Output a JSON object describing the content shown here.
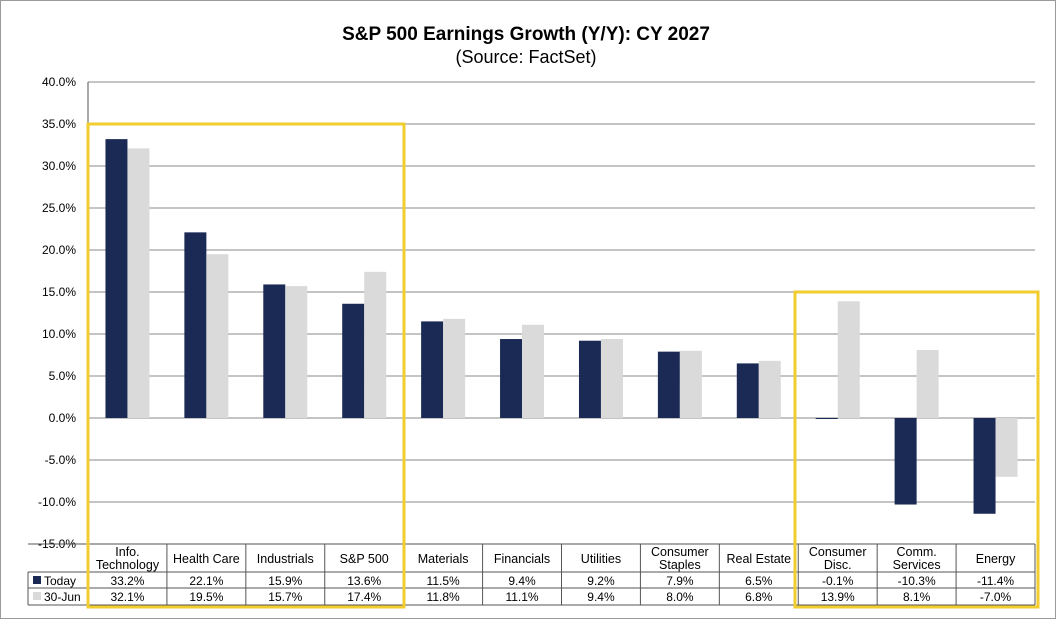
{
  "chart_data": {
    "type": "bar",
    "title": "S&P 500 Earnings Growth (Y/Y): CY 2027",
    "subtitle": "(Source: FactSet)",
    "categories": [
      [
        "Info.",
        "Technology"
      ],
      [
        "Health Care"
      ],
      [
        "Industrials"
      ],
      [
        "S&P 500"
      ],
      [
        "Materials"
      ],
      [
        "Financials"
      ],
      [
        "Utilities"
      ],
      [
        "Consumer",
        "Staples"
      ],
      [
        "Real Estate"
      ],
      [
        "Consumer",
        "Disc."
      ],
      [
        "Comm.",
        "Services"
      ],
      [
        "Energy"
      ]
    ],
    "series": [
      {
        "name": "Today",
        "color": "#1b2a55",
        "values": [
          33.2,
          22.1,
          15.9,
          13.6,
          11.5,
          9.4,
          9.2,
          7.9,
          6.5,
          -0.1,
          -10.3,
          -11.4
        ],
        "labels": [
          "33.2%",
          "22.1%",
          "15.9%",
          "13.6%",
          "11.5%",
          "9.4%",
          "9.2%",
          "7.9%",
          "6.5%",
          "-0.1%",
          "-10.3%",
          "-11.4%"
        ]
      },
      {
        "name": "30-Jun",
        "color": "#dadada",
        "values": [
          32.1,
          19.5,
          15.7,
          17.4,
          11.8,
          11.1,
          9.4,
          8.0,
          6.8,
          13.9,
          8.1,
          -7.0
        ],
        "labels": [
          "32.1%",
          "19.5%",
          "15.7%",
          "17.4%",
          "11.8%",
          "11.1%",
          "9.4%",
          "8.0%",
          "6.8%",
          "13.9%",
          "8.1%",
          "-7.0%"
        ]
      }
    ],
    "ylim": [
      -15,
      40
    ],
    "yticks": [
      "40.0%",
      "35.0%",
      "30.0%",
      "25.0%",
      "20.0%",
      "15.0%",
      "10.0%",
      "5.0%",
      "0.0%",
      "-5.0%",
      "-10.0%",
      "-15.0%"
    ],
    "ytick_values": [
      40,
      35,
      30,
      25,
      20,
      15,
      10,
      5,
      0,
      -5,
      -10,
      -15
    ],
    "grid": true,
    "legend": "data-table",
    "highlight_color": "#f2cd2e"
  }
}
